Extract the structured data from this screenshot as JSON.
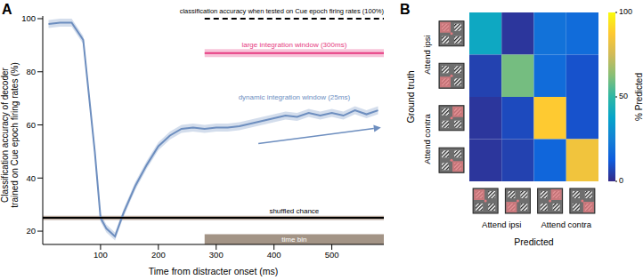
{
  "chart_data": [
    {
      "type": "line",
      "panel_label": "A",
      "xlabel": "Time from distracter onset (ms)",
      "ylabel": [
        "Classification accuracy of decoder",
        "trained on Cue epoch firing rates (%)"
      ],
      "xlim": [
        0,
        590
      ],
      "ylim": [
        15,
        101
      ],
      "xticks": [
        100,
        200,
        300,
        400,
        500
      ],
      "yticks": [
        20,
        40,
        60,
        80,
        100
      ],
      "series": [
        {
          "name": "dynamic integration window (25ms)",
          "color": "#6d8ebf",
          "x": [
            10,
            30,
            50,
            70,
            90,
            100,
            110,
            125,
            140,
            160,
            180,
            200,
            220,
            240,
            260,
            280,
            300,
            320,
            340,
            360,
            380,
            400,
            420,
            440,
            460,
            480,
            500,
            520,
            540,
            560,
            580
          ],
          "values": [
            98,
            98.5,
            98.5,
            92,
            50,
            25,
            21,
            18,
            27,
            37,
            45,
            52,
            56,
            58.5,
            59,
            58.5,
            59,
            59,
            59.5,
            60.5,
            61.5,
            62.5,
            63.5,
            63,
            64.5,
            63.5,
            64.5,
            63.5,
            65.5,
            64,
            65.5
          ],
          "error": [
            1.5,
            1.5,
            1.5,
            1.5,
            1.5,
            1.5,
            1.5,
            1.5,
            1.5,
            1.5,
            1.5,
            1.5,
            1.5,
            1.5,
            1.5,
            1.5,
            1.5,
            1.5,
            1.5,
            1.5,
            1.5,
            1.5,
            1.5,
            1.5,
            1.5,
            1.5,
            1.5,
            1.5,
            1.5,
            1.5,
            1.5
          ]
        },
        {
          "name": "large integration window (300ms)",
          "color": "#e63a80",
          "x": [
            280,
            590
          ],
          "values": [
            87,
            87
          ],
          "error": [
            1.5,
            1.5
          ]
        },
        {
          "name": "classification accuracy when tested on Cue epoch firing rates (100%)",
          "color": "#000000",
          "line_style": "dashed",
          "x": [
            280,
            590
          ],
          "values": [
            100,
            100
          ]
        },
        {
          "name": "shuffled chance",
          "color": "#000000",
          "x": [
            0,
            590
          ],
          "values": [
            25,
            25
          ],
          "error": [
            0.8,
            0.8
          ]
        }
      ],
      "time_bin": {
        "label": "time bin",
        "x": [
          280,
          590
        ]
      }
    },
    {
      "type": "heatmap",
      "panel_label": "B",
      "xlabel": "Predicted",
      "ylabel": "Ground truth",
      "row_groups": [
        "Attend ipsi",
        "Attend contra"
      ],
      "column_groups": [
        "Attend ipsi",
        "Attend contra"
      ],
      "cells": [
        [
          40,
          3,
          20,
          18
        ],
        [
          6,
          60,
          18,
          10
        ],
        [
          3,
          8,
          88,
          10
        ],
        [
          3,
          6,
          16,
          84
        ]
      ],
      "colorbar": {
        "label": "% Predicted",
        "range": [
          0,
          100
        ],
        "ticks": [
          0,
          50,
          100
        ]
      }
    }
  ]
}
